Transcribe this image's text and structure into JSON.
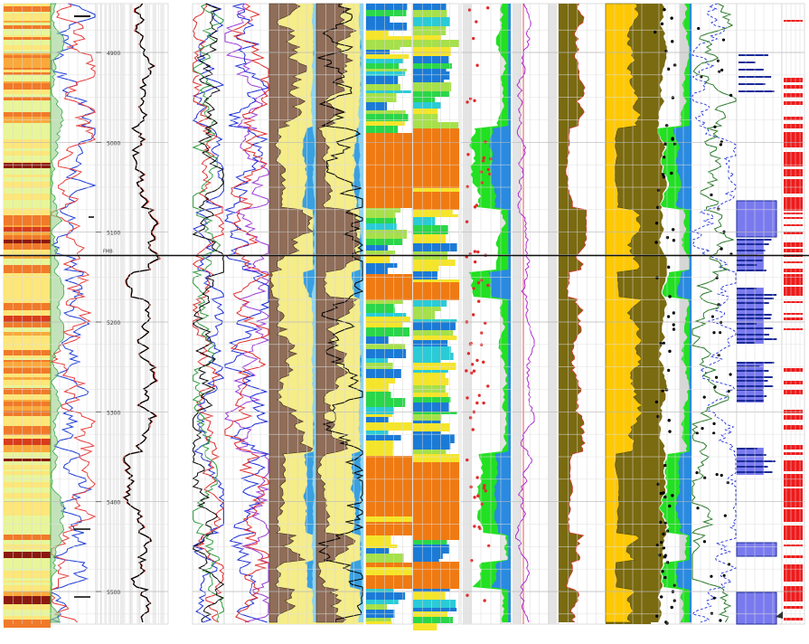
{
  "chart_data": {
    "type": "line",
    "title": "",
    "depth_axis": {
      "labels": [
        "4900",
        "5000",
        "5100",
        "5200",
        "5300",
        "5400",
        "5500"
      ],
      "values": [
        4900,
        5000,
        5100,
        5200,
        5300,
        5400,
        5500
      ],
      "marker_label": "FMB",
      "marker_depth": 5126
    },
    "tracks": [
      {
        "name": "",
        "kind": "color-bar",
        "palette": [
          "#e8f59a",
          "#fde67a",
          "#f9a93c",
          "#f07a2a",
          "#d83c1c",
          "#8a1a10"
        ]
      },
      {
        "name": "",
        "kind": "curves",
        "curves": [
          {
            "color": "#1b3bd6"
          },
          {
            "color": "#e83a3a"
          },
          {
            "color": "#34a84a"
          }
        ]
      },
      {
        "name": "",
        "kind": "depth",
        "ticks": [
          4900,
          5000,
          5100,
          5200,
          5300,
          5400,
          5500
        ]
      },
      {
        "name": "",
        "kind": "curves",
        "curves": [
          {
            "color": "#000000"
          },
          {
            "color": "#e23a2a"
          }
        ]
      },
      {
        "name": "",
        "kind": "curves",
        "curves": [
          {
            "color": "#1b2bd6"
          },
          {
            "color": "#e02a2a"
          },
          {
            "color": "#2a9a3a"
          },
          {
            "color": "#000000"
          }
        ]
      },
      {
        "name": "",
        "kind": "curves",
        "curves": [
          {
            "color": "#9a3ad6"
          },
          {
            "color": "#1b2bd6"
          },
          {
            "color": "#e02a2a"
          }
        ]
      },
      {
        "name": "",
        "kind": "lithology",
        "fills": [
          "#8f6d58",
          "#f5ec8a",
          "#3aa0e0",
          "#8fd3ef"
        ]
      },
      {
        "name": "",
        "kind": "lithology",
        "fills": [
          "#8f6d58",
          "#f5ec8a",
          "#3aa0e0",
          "#8fd3ef",
          "#000000"
        ]
      },
      {
        "name": "",
        "kind": "facies",
        "fills": [
          "#f07a12",
          "#f5e52a",
          "#a6e04a",
          "#2ad64a",
          "#2acbd6",
          "#1b7ad6"
        ]
      },
      {
        "name": "",
        "kind": "facies",
        "fills": [
          "#f07a12",
          "#f5e52a",
          "#a6e04a",
          "#2ad64a",
          "#2acbd6",
          "#1b7ad6"
        ]
      },
      {
        "name": "",
        "kind": "porosity",
        "fills": [
          "#22e022",
          "#2a8ae0"
        ],
        "points": "#e02a2a"
      },
      {
        "name": "",
        "kind": "curves",
        "curves": [
          {
            "color": "#b02ad6"
          },
          {
            "color": "#e02a2a"
          }
        ]
      },
      {
        "name": "",
        "kind": "fill",
        "fills": [
          "#7a6a10"
        ],
        "curves": [
          {
            "color": "#e02a2a"
          }
        ]
      },
      {
        "name": "",
        "kind": "fill",
        "fills": [
          "#7a6a10",
          "#ffc800"
        ]
      },
      {
        "name": "",
        "kind": "porosity",
        "fills": [
          "#7a6a10",
          "#22e022",
          "#2a8ae0"
        ],
        "points": "#000000"
      },
      {
        "name": "",
        "kind": "curves",
        "curves": [
          {
            "color": "#2a7a2a"
          },
          {
            "color": "#1b2bd6"
          }
        ],
        "points": "#000000"
      },
      {
        "name": "",
        "kind": "flag",
        "fills": [
          "#7a7aef",
          "#1b2b9a"
        ]
      },
      {
        "name": "",
        "kind": "flag",
        "fills": [
          "#ef1a1a"
        ]
      }
    ]
  }
}
